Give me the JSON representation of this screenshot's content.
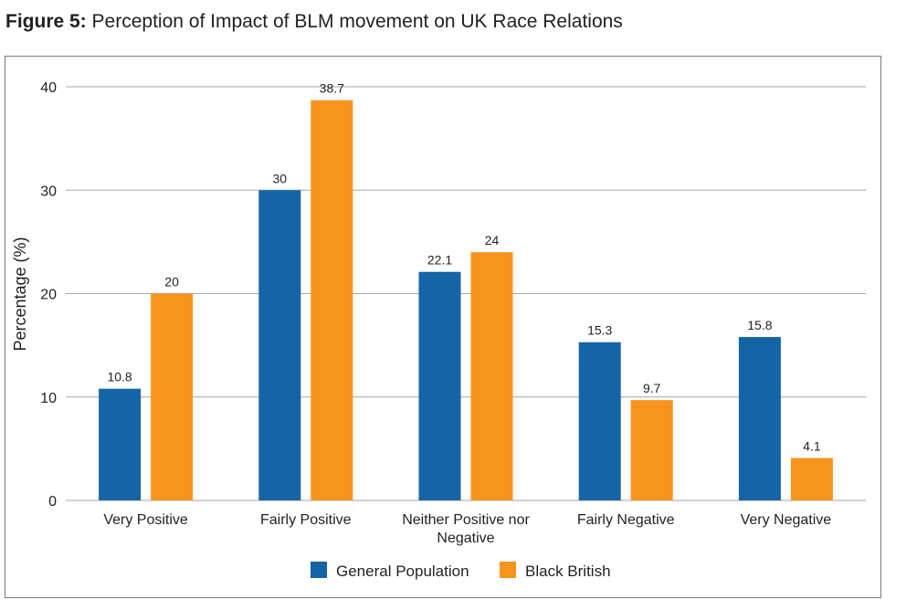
{
  "figure": {
    "label": "Figure 5:",
    "title": "Perception of Impact of BLM movement on UK Race Relations"
  },
  "chart_data": {
    "type": "bar",
    "title": "Perception of Impact of BLM movement on UK Race Relations",
    "xlabel": "",
    "ylabel": "Percentage (%)",
    "ylim": [
      0,
      40
    ],
    "yticks": [
      0,
      10,
      20,
      30,
      40
    ],
    "grid": true,
    "legend_position": "bottom-center",
    "categories": [
      [
        "Very Positive"
      ],
      [
        "Fairly Positive"
      ],
      [
        "Neither Positive nor",
        "Negative"
      ],
      [
        "Fairly Negative"
      ],
      [
        "Very Negative"
      ]
    ],
    "series": [
      {
        "name": "General Population",
        "color": "#1565a6",
        "values": [
          10.8,
          30,
          22.1,
          15.3,
          15.8
        ],
        "labels": [
          "10.8",
          "30",
          "22.1",
          "15.3",
          "15.8"
        ]
      },
      {
        "name": "Black British",
        "color": "#f7941d",
        "values": [
          20,
          38.7,
          24,
          9.7,
          4.1
        ],
        "labels": [
          "20",
          "38.7",
          "24",
          "9.7",
          "4.1"
        ]
      }
    ],
    "gridline_color": "#a6a6a6"
  }
}
